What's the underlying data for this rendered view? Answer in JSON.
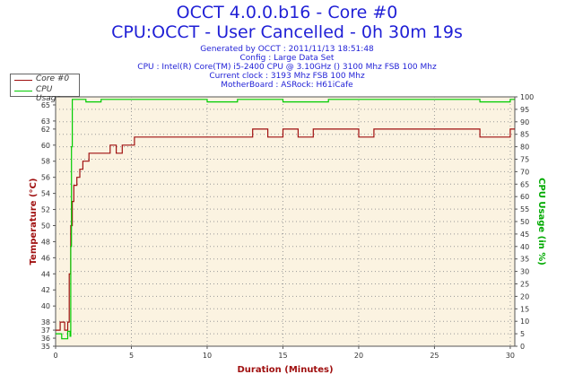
{
  "header": {
    "title": "OCCT 4.0.0.b16 - Core #0",
    "subtitle": "CPU:OCCT - User Cancelled - 0h 30m 19s",
    "info_lines": [
      "Generated by OCCT : 2011/11/13 18:51:48",
      "Config : Large Data Set",
      "CPU : Intel(R) Core(TM) i5-2400 CPU @ 3.10GHz () 3100 Mhz FSB 100 Mhz",
      "Current clock : 3193 Mhz FSB 100 Mhz",
      "MotherBoard : ASRock: H61iCafe"
    ]
  },
  "legend": [
    {
      "label": "Core #0",
      "color": "#a01010"
    },
    {
      "label": "CPU Usage",
      "color": "#00cc00"
    }
  ],
  "colors": {
    "plot_bg": "#fbf3e1",
    "grid": "#999999",
    "axis_left": "#a01010",
    "axis_right": "#00aa00",
    "title": "#1f1fd6"
  },
  "chart_data": {
    "type": "line",
    "xlabel": "Duration (Minutes)",
    "ylabel_left": "Temperature (°C)",
    "ylabel_right": "CPU Usage (in %)",
    "xlim": [
      0,
      30.3
    ],
    "ylim_left": [
      35,
      66
    ],
    "ylim_right": [
      0,
      100
    ],
    "x_ticks": [
      0,
      5,
      10,
      15,
      20,
      25,
      30
    ],
    "y_ticks_left": [
      35,
      36,
      37,
      38,
      40,
      42,
      44,
      46,
      48,
      50,
      52,
      54,
      56,
      58,
      60,
      62,
      63,
      65
    ],
    "y_ticks_right": [
      0,
      5,
      10,
      15,
      20,
      25,
      30,
      35,
      40,
      45,
      50,
      55,
      60,
      65,
      70,
      75,
      80,
      85,
      90,
      95,
      100
    ],
    "grid": true,
    "legend_position": "top-left",
    "series": [
      {
        "name": "Core #0",
        "x": [
          0,
          0.3,
          0.6,
          0.8,
          0.9,
          1.0,
          1.1,
          1.2,
          1.4,
          1.6,
          1.8,
          2.0,
          2.2,
          2.5,
          2.8,
          3.0,
          3.3,
          3.6,
          4.0,
          4.4,
          4.8,
          5.2,
          5.6,
          6.0,
          7,
          8,
          9,
          10,
          11,
          12,
          13,
          14,
          15,
          16,
          17,
          18,
          19,
          20,
          21,
          22,
          23,
          24,
          25,
          26,
          27,
          28,
          29,
          30,
          30.3
        ],
        "values": [
          37,
          38,
          37,
          38,
          44,
          50,
          53,
          55,
          56,
          57,
          58,
          58,
          59,
          59,
          59,
          59,
          59,
          60,
          59,
          60,
          60,
          61,
          61,
          61,
          61,
          61,
          61,
          61,
          61,
          61,
          62,
          61,
          62,
          61,
          62,
          62,
          62,
          61,
          62,
          62,
          62,
          62,
          62,
          62,
          62,
          61,
          61,
          62,
          62
        ]
      },
      {
        "name": "CPU Usage",
        "x": [
          0,
          0.4,
          0.8,
          0.95,
          1.0,
          1.05,
          1.1,
          1.3,
          2,
          3,
          5,
          8,
          10,
          12,
          14,
          15,
          18,
          20,
          25,
          28,
          30,
          30.3
        ],
        "values": [
          5,
          3,
          6,
          4,
          40,
          80,
          99,
          99,
          98,
          99,
          99,
          99,
          98,
          99,
          99,
          98,
          99,
          99,
          99,
          98,
          99,
          99
        ]
      }
    ]
  }
}
